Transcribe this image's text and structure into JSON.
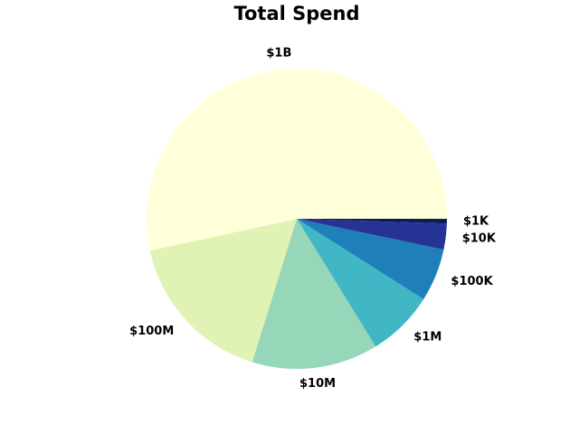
{
  "chart_data": {
    "type": "pie",
    "title": "Total Spend",
    "categories": [
      "$1K",
      "$10K",
      "$100K",
      "$1M",
      "$10M",
      "$100M",
      "$1B"
    ],
    "values": [
      0.5,
      2.8,
      5.7,
      7.2,
      13.6,
      16.8,
      53.4
    ],
    "colors": [
      "#081d58",
      "#253494",
      "#1f7fb9",
      "#41b6c4",
      "#97d7b9",
      "#e0f3b4",
      "#ffffd9"
    ],
    "start_angle_deg": 0,
    "direction": "clockwise",
    "legend": "none"
  }
}
